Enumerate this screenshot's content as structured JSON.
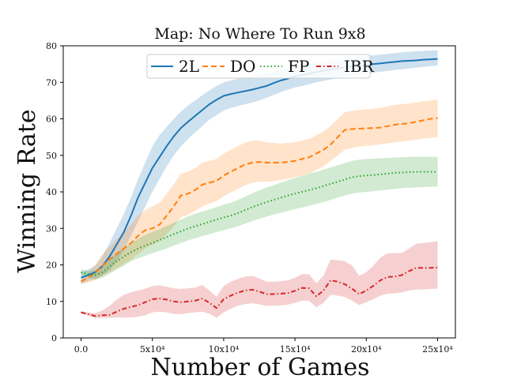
{
  "chart_data": {
    "type": "line",
    "title": "Map: No Where To Run 9x8",
    "xlabel": "Number of Games",
    "ylabel": "Winning Rate",
    "xlim": [
      -12500,
      262500
    ],
    "ylim": [
      0,
      80
    ],
    "grid": false,
    "legend_position": "top-right",
    "x_ticks": [
      {
        "value": 0,
        "label": "0.0"
      },
      {
        "value": 50000,
        "label": "5x10⁴"
      },
      {
        "value": 100000,
        "label": "10x10⁴"
      },
      {
        "value": 150000,
        "label": "15x10⁴"
      },
      {
        "value": 200000,
        "label": "20x10⁴"
      },
      {
        "value": 250000,
        "label": "25x10⁴"
      }
    ],
    "y_ticks": [
      0,
      10,
      20,
      30,
      40,
      50,
      60,
      70,
      80
    ],
    "x": [
      0,
      5000,
      10000,
      15000,
      20000,
      25000,
      30000,
      35000,
      40000,
      45000,
      50000,
      55000,
      60000,
      65000,
      70000,
      75000,
      80000,
      85000,
      90000,
      95000,
      100000,
      105000,
      110000,
      115000,
      120000,
      125000,
      130000,
      135000,
      140000,
      145000,
      150000,
      155000,
      160000,
      165000,
      170000,
      175000,
      180000,
      185000,
      190000,
      195000,
      200000,
      205000,
      210000,
      215000,
      220000,
      225000,
      230000,
      235000,
      240000,
      245000,
      250000
    ],
    "series": [
      {
        "name": "2L",
        "color": "#1f77b4",
        "dash": "solid",
        "values": [
          16.5,
          17.2,
          18.0,
          19.7,
          22.3,
          25.6,
          29.0,
          33.5,
          38.5,
          42.5,
          46.5,
          49.5,
          52.5,
          55.2,
          57.5,
          59.2,
          60.8,
          62.4,
          64.0,
          65.2,
          66.3,
          66.8,
          67.2,
          67.6,
          68.0,
          68.5,
          69.0,
          69.8,
          70.5,
          71.0,
          71.6,
          72.0,
          72.4,
          72.8,
          73.2,
          73.5,
          73.8,
          74.1,
          74.4,
          74.6,
          74.8,
          75.0,
          75.2,
          75.4,
          75.6,
          75.8,
          75.9,
          76.0,
          76.2,
          76.3,
          76.4
        ],
        "lower": [
          14.8,
          15.6,
          16.2,
          17.2,
          18.5,
          21.0,
          24.0,
          28.0,
          32.0,
          36.0,
          40.0,
          43.5,
          47.0,
          50.0,
          52.5,
          54.5,
          56.3,
          58.0,
          59.8,
          61.0,
          62.3,
          63.0,
          63.5,
          64.0,
          64.5,
          65.0,
          65.8,
          66.5,
          67.3,
          68.0,
          68.6,
          69.0,
          69.5,
          70.0,
          70.4,
          70.8,
          71.2,
          71.5,
          71.8,
          72.0,
          72.3,
          72.6,
          72.9,
          73.1,
          73.4,
          73.6,
          73.8,
          74.0,
          74.2,
          74.4,
          74.6
        ],
        "upper": [
          18.0,
          18.8,
          19.8,
          22.5,
          26.0,
          30.0,
          34.0,
          38.5,
          43.5,
          48.0,
          52.5,
          55.5,
          57.8,
          60.0,
          62.0,
          63.6,
          65.0,
          66.5,
          67.8,
          69.0,
          70.0,
          70.5,
          71.0,
          71.4,
          71.8,
          72.2,
          72.6,
          73.0,
          73.4,
          73.8,
          74.2,
          74.6,
          75.0,
          75.3,
          75.6,
          75.9,
          76.2,
          76.5,
          76.8,
          77.0,
          77.2,
          77.4,
          77.6,
          77.8,
          78.0,
          78.2,
          78.4,
          78.5,
          78.6,
          78.7,
          78.8
        ]
      },
      {
        "name": "DO",
        "color": "#ff7f0e",
        "dash": "dashed",
        "values": [
          15.5,
          16.5,
          17.8,
          19.8,
          21.5,
          23.0,
          24.5,
          26.0,
          28.0,
          29.5,
          30.0,
          31.0,
          33.5,
          36.0,
          39.0,
          39.5,
          40.5,
          42.0,
          42.5,
          43.0,
          44.5,
          45.5,
          46.5,
          47.5,
          48.0,
          48.2,
          48.0,
          48.0,
          48.0,
          48.2,
          48.5,
          49.0,
          49.5,
          50.5,
          51.5,
          53.0,
          55.0,
          57.0,
          57.2,
          57.3,
          57.4,
          57.5,
          57.6,
          58.0,
          58.4,
          58.6,
          58.8,
          59.2,
          59.6,
          60.0,
          60.2
        ],
        "lower": [
          14.8,
          15.2,
          15.8,
          17.0,
          18.0,
          19.0,
          20.2,
          21.5,
          23.0,
          24.5,
          25.5,
          26.5,
          28.5,
          30.5,
          33.0,
          33.8,
          34.8,
          36.0,
          36.8,
          37.5,
          38.8,
          39.8,
          40.8,
          41.8,
          42.5,
          42.8,
          42.8,
          43.0,
          43.2,
          43.6,
          44.0,
          44.5,
          45.0,
          46.0,
          47.0,
          48.5,
          50.0,
          51.5,
          52.0,
          52.4,
          52.6,
          52.8,
          53.0,
          53.3,
          53.6,
          53.8,
          54.0,
          54.3,
          54.6,
          54.8,
          55.0
        ],
        "upper": [
          16.2,
          17.8,
          20.0,
          22.8,
          25.0,
          27.0,
          29.0,
          31.0,
          33.5,
          35.0,
          36.0,
          37.0,
          39.5,
          42.0,
          45.0,
          45.5,
          46.5,
          48.0,
          48.5,
          49.0,
          50.5,
          51.5,
          52.5,
          53.5,
          54.0,
          54.0,
          53.6,
          53.4,
          53.2,
          53.4,
          53.6,
          54.0,
          54.5,
          55.5,
          56.5,
          58.0,
          60.0,
          61.8,
          62.2,
          62.4,
          62.6,
          62.8,
          63.0,
          63.4,
          63.8,
          64.0,
          64.2,
          64.5,
          64.8,
          65.0,
          65.2
        ]
      },
      {
        "name": "FP",
        "color": "#2ca02c",
        "dash": "dotted",
        "values": [
          18.0,
          17.5,
          17.2,
          18.0,
          19.5,
          21.0,
          22.3,
          23.5,
          24.5,
          25.3,
          26.0,
          26.8,
          27.6,
          28.4,
          29.2,
          30.0,
          30.6,
          31.2,
          31.8,
          32.4,
          33.0,
          33.5,
          34.2,
          35.0,
          35.8,
          36.5,
          37.2,
          37.8,
          38.4,
          39.0,
          39.5,
          40.0,
          40.5,
          41.0,
          41.6,
          42.2,
          42.8,
          43.4,
          44.0,
          44.3,
          44.5,
          44.6,
          44.8,
          45.0,
          45.2,
          45.3,
          45.4,
          45.5,
          45.5,
          45.5,
          45.5
        ],
        "lower": [
          17.2,
          16.6,
          16.0,
          16.5,
          17.6,
          18.8,
          19.8,
          21.0,
          21.8,
          22.5,
          23.2,
          23.8,
          24.5,
          25.3,
          26.0,
          26.7,
          27.3,
          27.9,
          28.4,
          29.0,
          29.5,
          30.0,
          30.6,
          31.3,
          32.0,
          32.6,
          33.2,
          33.8,
          34.3,
          34.8,
          35.3,
          35.7,
          36.2,
          36.7,
          37.2,
          37.8,
          38.4,
          39.0,
          39.5,
          39.8,
          40.0,
          40.2,
          40.4,
          40.6,
          40.8,
          41.0,
          41.1,
          41.2,
          41.3,
          41.4,
          41.5
        ],
        "upper": [
          18.8,
          18.4,
          18.5,
          19.8,
          21.6,
          23.3,
          24.8,
          26.0,
          27.2,
          28.2,
          29.0,
          29.8,
          30.7,
          31.5,
          32.4,
          33.3,
          34.0,
          34.6,
          35.2,
          35.8,
          36.5,
          37.0,
          37.8,
          38.7,
          39.6,
          40.4,
          41.2,
          41.8,
          42.5,
          43.2,
          43.8,
          44.4,
          45.0,
          45.5,
          46.1,
          46.7,
          47.3,
          47.9,
          48.5,
          48.8,
          49.0,
          49.1,
          49.2,
          49.3,
          49.4,
          49.5,
          49.6,
          49.6,
          49.6,
          49.6,
          49.6
        ]
      },
      {
        "name": "IBR",
        "color": "#d62728",
        "dash": "dashdot",
        "values": [
          7.0,
          6.5,
          6.0,
          6.2,
          6.3,
          7.2,
          8.0,
          8.5,
          9.0,
          9.8,
          10.6,
          10.8,
          10.5,
          10.0,
          9.8,
          10.0,
          10.2,
          10.8,
          9.6,
          8.2,
          10.6,
          11.6,
          12.4,
          13.0,
          13.2,
          12.7,
          12.0,
          12.0,
          12.1,
          12.3,
          12.9,
          13.7,
          13.6,
          11.4,
          13.0,
          15.8,
          15.4,
          14.7,
          13.5,
          12.0,
          13.0,
          14.3,
          15.8,
          16.7,
          16.8,
          17.2,
          18.3,
          19.2,
          19.2,
          19.2,
          19.3
        ],
        "lower": [
          6.7,
          6.0,
          5.4,
          5.5,
          5.5,
          5.6,
          5.6,
          5.6,
          5.8,
          6.2,
          7.0,
          7.2,
          7.0,
          6.6,
          6.5,
          6.8,
          7.0,
          7.2,
          6.6,
          5.5,
          7.0,
          8.0,
          8.8,
          9.3,
          9.5,
          9.2,
          8.8,
          8.8,
          8.9,
          9.1,
          9.6,
          10.2,
          10.1,
          8.4,
          9.6,
          11.8,
          11.6,
          11.2,
          10.2,
          9.0,
          9.8,
          10.6,
          11.6,
          12.1,
          12.2,
          12.5,
          13.0,
          13.2,
          13.3,
          13.4,
          13.5
        ],
        "upper": [
          7.3,
          7.0,
          6.8,
          7.5,
          8.8,
          10.5,
          11.8,
          12.5,
          13.0,
          13.5,
          14.2,
          14.4,
          14.0,
          13.6,
          13.4,
          13.6,
          13.8,
          14.5,
          13.0,
          11.3,
          14.2,
          15.4,
          16.2,
          16.8,
          17.0,
          16.3,
          15.4,
          15.4,
          15.5,
          15.8,
          16.5,
          17.5,
          17.4,
          15.0,
          17.0,
          21.5,
          21.3,
          21.0,
          19.8,
          17.0,
          18.0,
          19.8,
          22.0,
          23.2,
          23.2,
          23.3,
          24.5,
          25.8,
          26.0,
          26.2,
          26.5
        ]
      }
    ]
  }
}
